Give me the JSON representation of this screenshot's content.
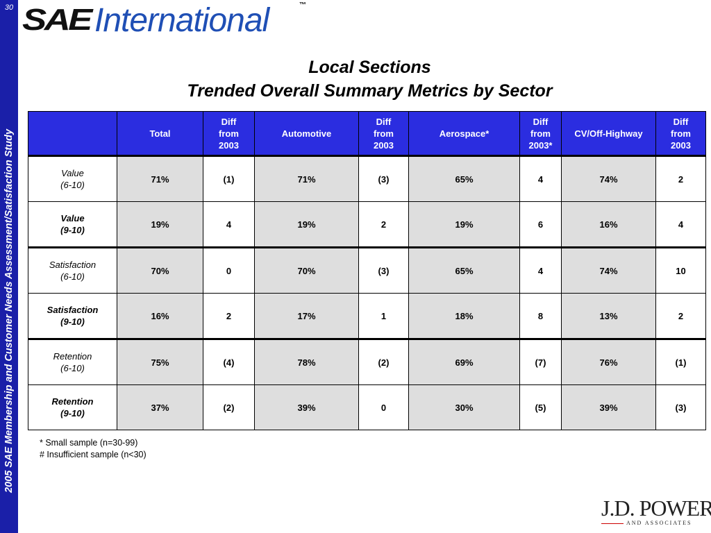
{
  "sidebar": {
    "page_number": "30",
    "study_title": "2005 SAE Membership and Customer Needs Assessment/Satisfaction Study"
  },
  "logo": {
    "sae": "SAE",
    "international": "International",
    "tm": "™"
  },
  "title": {
    "line1": "Local Sections",
    "line2": "Trended Overall Summary Metrics by Sector"
  },
  "table": {
    "headers": [
      "",
      "Total",
      "Diff from 2003",
      "Automotive",
      "Diff from 2003",
      "Aerospace*",
      "Diff from 2003*",
      "CV/Off-Highway",
      "Diff from 2003"
    ],
    "header_lines": {
      "diff": [
        "Diff",
        "from",
        "2003"
      ],
      "diff_star": [
        "Diff",
        "from",
        "2003*"
      ]
    },
    "rows": [
      {
        "label": [
          "Value",
          "(6-10)"
        ],
        "bold": false,
        "cells": [
          "71%",
          "(1)",
          "71%",
          "(3)",
          "65%",
          "4",
          "74%",
          "2"
        ]
      },
      {
        "label": [
          "Value",
          "(9-10)"
        ],
        "bold": true,
        "cells": [
          "19%",
          "4",
          "19%",
          "2",
          "19%",
          "6",
          "16%",
          "4"
        ]
      },
      {
        "label": [
          "Satisfaction",
          "(6-10)"
        ],
        "bold": false,
        "cells": [
          "70%",
          "0",
          "70%",
          "(3)",
          "65%",
          "4",
          "74%",
          "10"
        ]
      },
      {
        "label": [
          "Satisfaction",
          "(9-10)"
        ],
        "bold": true,
        "cells": [
          "16%",
          "2",
          "17%",
          "1",
          "18%",
          "8",
          "13%",
          "2"
        ]
      },
      {
        "label": [
          "Retention",
          "(6-10)"
        ],
        "bold": false,
        "cells": [
          "75%",
          "(4)",
          "78%",
          "(2)",
          "69%",
          "(7)",
          "76%",
          "(1)"
        ]
      },
      {
        "label": [
          "Retention",
          "(9-10)"
        ],
        "bold": true,
        "cells": [
          "37%",
          "(2)",
          "39%",
          "0",
          "30%",
          "(5)",
          "39%",
          "(3)"
        ]
      }
    ]
  },
  "notes": [
    "*  Small sample (n=30-99)",
    "#  Insufficient sample (n<30)"
  ],
  "jdpower": {
    "main": "J.D. POWER",
    "sub": "AND ASSOCIATES"
  },
  "colors": {
    "sidebar": "#1a1fa8",
    "header": "#2b2de0",
    "gray_cell": "#dedede",
    "logo_blue": "#1f4fb5"
  }
}
